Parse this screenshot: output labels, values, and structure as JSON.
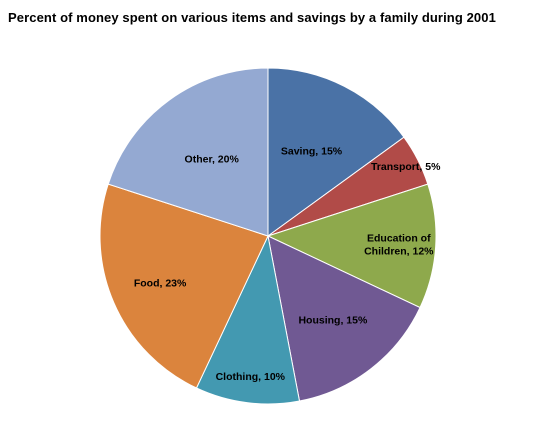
{
  "chart_data": {
    "type": "pie",
    "title": "Percent of money spent on various items and savings by a family during 2001",
    "start_angle_deg": 0,
    "direction": "clockwise",
    "slices": [
      {
        "label": "Saving",
        "value": 15,
        "display": "Saving, 15%",
        "color": "#4A72A6"
      },
      {
        "label": "Transport",
        "value": 5,
        "display": "Transport, 5%",
        "color": "#B14B48"
      },
      {
        "label": "Education of Children",
        "value": 12,
        "display": "Education of Children, 12%",
        "color": "#8EA94C"
      },
      {
        "label": "Housing",
        "value": 15,
        "display": "Housing, 15%",
        "color": "#705993"
      },
      {
        "label": "Clothing",
        "value": 10,
        "display": "Clothing, 10%",
        "color": "#4399B1"
      },
      {
        "label": "Food",
        "value": 23,
        "display": "Food, 23%",
        "color": "#DB843D"
      },
      {
        "label": "Other",
        "value": 20,
        "display": "Other, 20%",
        "color": "#94A9D2"
      }
    ]
  }
}
